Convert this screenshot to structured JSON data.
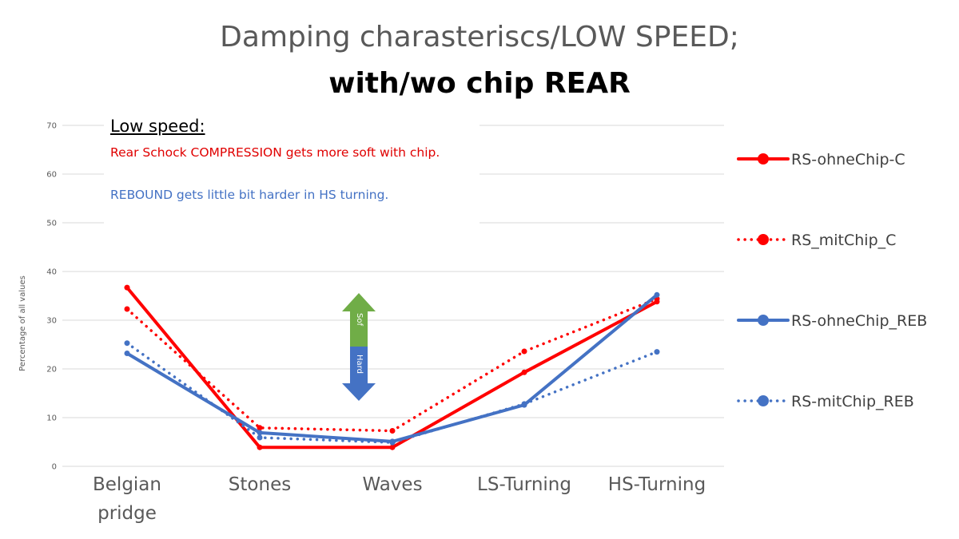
{
  "title": {
    "line1": "Damping charasteriscs/LOW SPEED;",
    "line2": "with/wo chip REAR"
  },
  "note": {
    "heading": "Low speed:",
    "compression_text": " Rear Schock COMPRESSION gets more soft with chip.",
    "rebound_text": "REBOUND gets little bit harder in HS turning."
  },
  "arrow": {
    "up_label": "Sof",
    "down_label": "Hard",
    "up_color": "#70ad47",
    "down_color": "#4472c4"
  },
  "chart_data": {
    "type": "line",
    "categories": [
      "Belgian pridge",
      "Stones",
      "Waves",
      "LS-Turning",
      "HS-Turning"
    ],
    "ylabel": "Percentage of all values",
    "xlabel": "",
    "ylim": [
      0,
      70
    ],
    "yticks": [
      0,
      10,
      20,
      30,
      40,
      50,
      60,
      70
    ],
    "grid": true,
    "legend_position": "right",
    "series": [
      {
        "name": "RS-ohneChip-C",
        "color": "#ff0000",
        "style": "solid",
        "values": [
          36.7,
          3.9,
          3.9,
          19.3,
          33.8
        ]
      },
      {
        "name": "RS_mitChip_C",
        "color": "#ff0000",
        "style": "dotted",
        "values": [
          32.3,
          7.9,
          7.3,
          23.6,
          34.4
        ]
      },
      {
        "name": "RS-ohneChip_REB",
        "color": "#4472c4",
        "style": "solid",
        "values": [
          23.2,
          6.9,
          5.1,
          12.6,
          35.2
        ]
      },
      {
        "name": "RS-mitChip_REB",
        "color": "#4472c4",
        "style": "dotted",
        "values": [
          25.3,
          5.9,
          4.9,
          12.8,
          23.5
        ]
      }
    ]
  }
}
